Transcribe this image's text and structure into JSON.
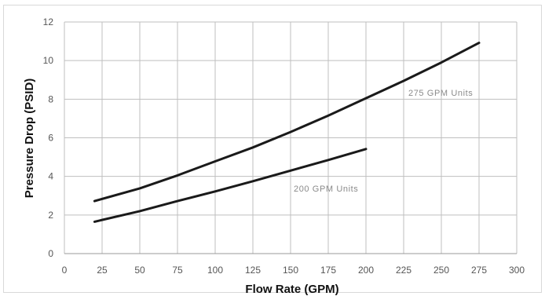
{
  "chart_data": {
    "type": "line",
    "title": "",
    "xlabel": "Flow Rate (GPM)",
    "ylabel": "Pressure Drop (PSID)",
    "xlim": [
      0,
      300
    ],
    "ylim": [
      0,
      12
    ],
    "xticks": [
      0,
      25,
      50,
      75,
      100,
      125,
      150,
      175,
      200,
      225,
      250,
      275,
      300
    ],
    "yticks": [
      0,
      2,
      4,
      6,
      8,
      10,
      12
    ],
    "grid": true,
    "legend": "none",
    "series": [
      {
        "name": "275 GPM Units",
        "color": "#1a1a1a",
        "points": [
          [
            20,
            2.72
          ],
          [
            50,
            3.38
          ],
          [
            75,
            4.05
          ],
          [
            100,
            4.78
          ],
          [
            125,
            5.5
          ],
          [
            150,
            6.3
          ],
          [
            175,
            7.15
          ],
          [
            200,
            8.05
          ],
          [
            225,
            8.95
          ],
          [
            250,
            9.9
          ],
          [
            275,
            10.92
          ]
        ]
      },
      {
        "name": "200 GPM Units",
        "color": "#1a1a1a",
        "points": [
          [
            20,
            1.65
          ],
          [
            50,
            2.2
          ],
          [
            75,
            2.72
          ],
          [
            100,
            3.22
          ],
          [
            125,
            3.75
          ],
          [
            150,
            4.3
          ],
          [
            175,
            4.85
          ],
          [
            200,
            5.42
          ]
        ]
      }
    ]
  }
}
